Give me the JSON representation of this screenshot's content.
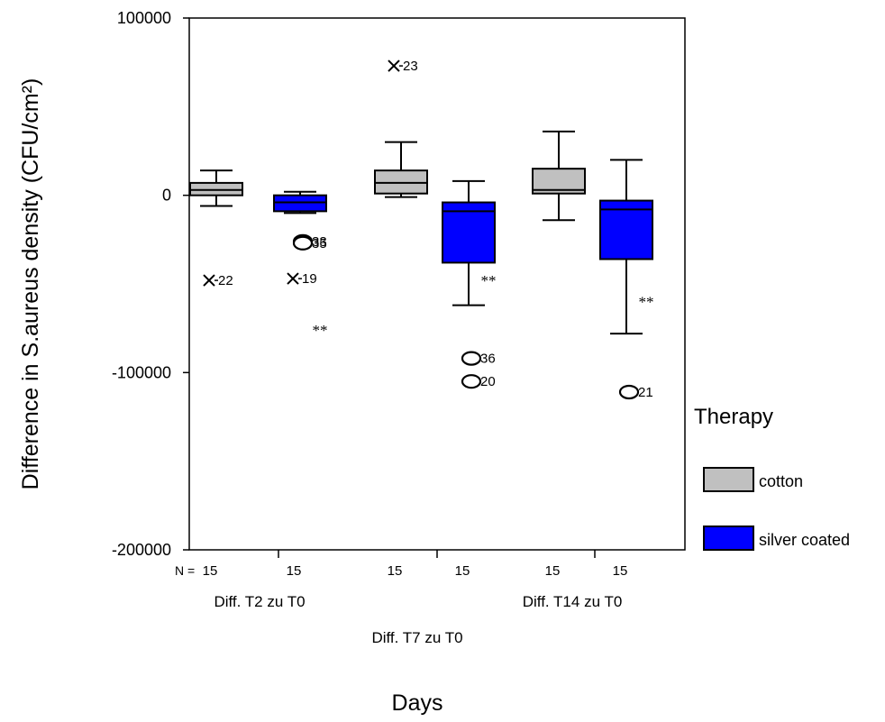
{
  "chart_data": {
    "type": "boxplot",
    "ylabel": "Difference in S.aureus density (CFU/cm²)",
    "xlabel": "Days",
    "ylim": [
      -200000,
      100000
    ],
    "yticks": [
      100000,
      0,
      -100000,
      -200000
    ],
    "ytick_labels": [
      "100000",
      "0",
      "-100000",
      "-200000"
    ],
    "n_prefix": "N =",
    "groups": [
      {
        "label": "Diff. T2 zu T0"
      },
      {
        "label": "Diff. T7 zu T0"
      },
      {
        "label": "Diff. T14 zu T0"
      }
    ],
    "legend": {
      "title": "Therapy",
      "position": "right",
      "items": [
        {
          "label": "cotton",
          "color": "#c0c0c0"
        },
        {
          "label": "silver coated",
          "color": "#0000ff"
        }
      ]
    },
    "boxes": [
      {
        "group": 0,
        "series": 0,
        "n": "15",
        "whisker_low": -6000,
        "q1": 0,
        "median": 3000,
        "q3": 7000,
        "whisker_high": 14000,
        "outliers": [],
        "extremes": [
          {
            "y": -48000,
            "label": "22"
          }
        ]
      },
      {
        "group": 0,
        "series": 1,
        "n": "15",
        "whisker_low": -10000,
        "q1": -9000,
        "median": -4000,
        "q3": 0,
        "whisker_high": 2000,
        "outliers": [
          {
            "y": -26000,
            "label": "33"
          },
          {
            "y": -27000,
            "label": "35"
          }
        ],
        "extremes": [
          {
            "y": -47000,
            "label": "19"
          },
          {
            "y": -76000,
            "label": "**"
          }
        ]
      },
      {
        "group": 1,
        "series": 0,
        "n": "15",
        "whisker_low": -1000,
        "q1": 1000,
        "median": 7000,
        "q3": 14000,
        "whisker_high": 30000,
        "outliers": [],
        "extremes": [
          {
            "y": 73000,
            "label": "23"
          }
        ]
      },
      {
        "group": 1,
        "series": 1,
        "n": "15",
        "whisker_low": -62000,
        "q1": -38000,
        "median": -9000,
        "q3": -4000,
        "whisker_high": 8000,
        "outliers": [
          {
            "y": -92000,
            "label": "36"
          },
          {
            "y": -105000,
            "label": "20"
          }
        ],
        "extremes": [
          {
            "y": -48000,
            "label": "**"
          }
        ]
      },
      {
        "group": 2,
        "series": 0,
        "n": "15",
        "whisker_low": -14000,
        "q1": 1000,
        "median": 3000,
        "q3": 15000,
        "whisker_high": 36000,
        "outliers": [],
        "extremes": []
      },
      {
        "group": 2,
        "series": 1,
        "n": "15",
        "whisker_low": -78000,
        "q1": -36000,
        "median": -8000,
        "q3": -3000,
        "whisker_high": 20000,
        "outliers": [
          {
            "y": -111000,
            "label": "21"
          }
        ],
        "extremes": [
          {
            "y": -60000,
            "label": "**"
          }
        ]
      }
    ]
  }
}
